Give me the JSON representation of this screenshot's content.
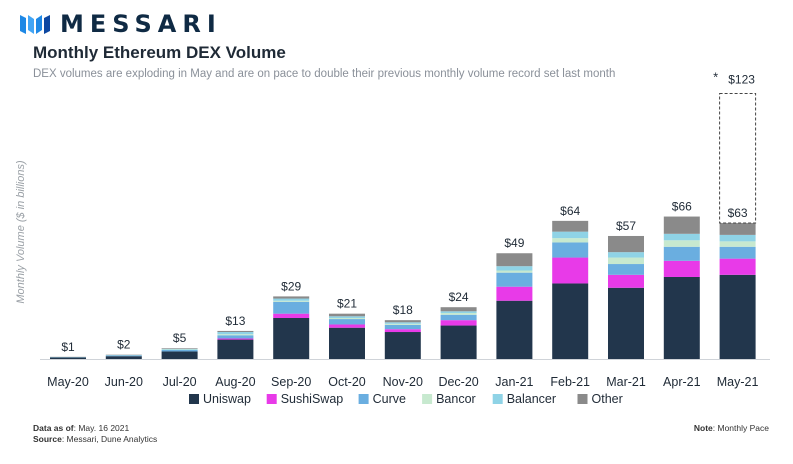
{
  "brand": {
    "name": "MESSARI"
  },
  "header": {
    "title": "Monthly Ethereum DEX Volume",
    "subtitle": "DEX volumes are exploding in May and are on pace to double their previous monthly volume record set last month"
  },
  "footer": {
    "data_as_of_label": "Data as of",
    "data_as_of_value": ": May. 16 2021",
    "source_label": "Source",
    "source_value": ": Messari, Dune Analytics",
    "note_label": "Note",
    "note_value": ": Monthly Pace"
  },
  "chart_data": {
    "type": "bar",
    "stacked": true,
    "ylabel": "Monthly Volume ($ in billions)",
    "xlabel": "",
    "ylim": [
      0,
      130
    ],
    "grid": false,
    "legend_position": "bottom",
    "categories": [
      "May-20",
      "Jun-20",
      "Jul-20",
      "Aug-20",
      "Sep-20",
      "Oct-20",
      "Nov-20",
      "Dec-20",
      "Jan-21",
      "Feb-21",
      "Mar-21",
      "Apr-21",
      "May-21"
    ],
    "series": [
      {
        "name": "Uniswap",
        "color": "#22364c",
        "values": [
          0.7,
          1.3,
          3.5,
          9.0,
          19.0,
          14.5,
          12.5,
          15.5,
          27.0,
          35.0,
          33.0,
          38.0,
          39.0
        ]
      },
      {
        "name": "SushiSwap",
        "color": "#e83ae8",
        "values": [
          0.0,
          0.0,
          0.0,
          0.5,
          2.0,
          1.5,
          1.3,
          2.5,
          6.5,
          12.0,
          6.0,
          7.5,
          7.5
        ]
      },
      {
        "name": "Curve",
        "color": "#6aaee0",
        "values": [
          0.1,
          0.3,
          0.7,
          1.5,
          5.5,
          2.5,
          2.0,
          2.5,
          6.5,
          7.0,
          5.0,
          6.5,
          5.5
        ]
      },
      {
        "name": "Bancor",
        "color": "#c7e9cf",
        "values": [
          0.0,
          0.0,
          0.2,
          0.5,
          0.5,
          0.5,
          0.5,
          0.8,
          1.0,
          2.0,
          3.0,
          3.0,
          2.5
        ]
      },
      {
        "name": "Balancer",
        "color": "#8fd3e6",
        "values": [
          0.1,
          0.2,
          0.3,
          1.0,
          1.0,
          0.8,
          0.7,
          0.8,
          2.0,
          3.0,
          2.5,
          3.0,
          3.0
        ]
      },
      {
        "name": "Other",
        "color": "#8a8a8a",
        "values": [
          0.1,
          0.2,
          0.3,
          0.5,
          1.0,
          1.2,
          1.0,
          1.9,
          6.0,
          5.0,
          7.5,
          8.0,
          5.5
        ]
      }
    ],
    "totals": [
      1,
      2,
      5,
      13,
      29,
      21,
      18,
      24,
      49,
      64,
      57,
      66,
      63
    ],
    "total_labels": [
      "$1",
      "$2",
      "$5",
      "$13",
      "$29",
      "$21",
      "$18",
      "$24",
      "$49",
      "$64",
      "$57",
      "$66",
      "$63"
    ],
    "projection": {
      "category": "May-21",
      "value": 123,
      "label": "$123",
      "marker": "*"
    }
  }
}
